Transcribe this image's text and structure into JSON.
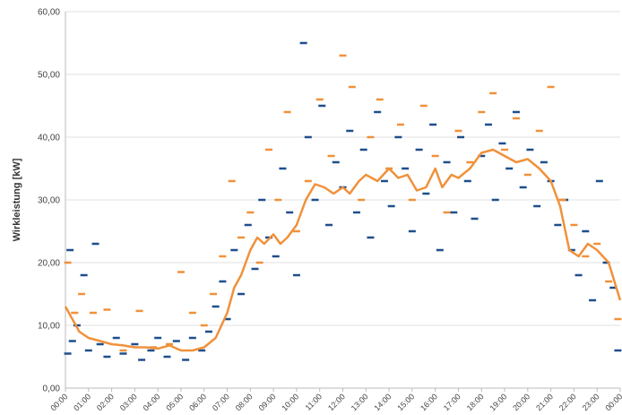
{
  "chart_data": {
    "type": "scatter",
    "y_label": "Wirkleistung [kW]",
    "xlim": [
      0,
      24
    ],
    "ylim": [
      0,
      60
    ],
    "yticks": [
      {
        "value": 0,
        "label": "0,00"
      },
      {
        "value": 10,
        "label": "10,00"
      },
      {
        "value": 20,
        "label": "20,00"
      },
      {
        "value": 30,
        "label": "30,00"
      },
      {
        "value": 40,
        "label": "40,00"
      },
      {
        "value": 50,
        "label": "50,00"
      },
      {
        "value": 60,
        "label": "60,00"
      }
    ],
    "xticks": [
      {
        "value": 0,
        "label": "00:00"
      },
      {
        "value": 1,
        "label": "01:00"
      },
      {
        "value": 2,
        "label": "02:00"
      },
      {
        "value": 3,
        "label": "03:00"
      },
      {
        "value": 4,
        "label": "04:00"
      },
      {
        "value": 5,
        "label": "05:00"
      },
      {
        "value": 6,
        "label": "06:00"
      },
      {
        "value": 7,
        "label": "07:00"
      },
      {
        "value": 8,
        "label": "08:00"
      },
      {
        "value": 9,
        "label": "09:00"
      },
      {
        "value": 10,
        "label": "10:00"
      },
      {
        "value": 11,
        "label": "11:00"
      },
      {
        "value": 12,
        "label": "12:00"
      },
      {
        "value": 13,
        "label": "13:00"
      },
      {
        "value": 14,
        "label": "14:00"
      },
      {
        "value": 15,
        "label": "15:00"
      },
      {
        "value": 16,
        "label": "16:00"
      },
      {
        "value": 17,
        "label": "17:00"
      },
      {
        "value": 18,
        "label": "18:00"
      },
      {
        "value": 19,
        "label": "19:00"
      },
      {
        "value": 20,
        "label": "20:00"
      },
      {
        "value": 21,
        "label": "21:00"
      },
      {
        "value": 22,
        "label": "22:00"
      },
      {
        "value": 23,
        "label": "23:00"
      },
      {
        "value": 24,
        "label": "00:00"
      }
    ],
    "grid": true,
    "series": [
      {
        "color": "#1f4e8c",
        "marker": "dash",
        "x": [
          0.1,
          0.2,
          0.3,
          0.5,
          0.8,
          1.0,
          1.3,
          1.5,
          1.8,
          2.2,
          2.5,
          3.0,
          3.3,
          3.7,
          4.0,
          4.4,
          4.8,
          5.2,
          5.5,
          5.9,
          6.2,
          6.5,
          6.8,
          7.0,
          7.3,
          7.6,
          7.9,
          8.2,
          8.5,
          8.8,
          9.1,
          9.4,
          9.7,
          10.0,
          10.3,
          10.5,
          10.8,
          11.1,
          11.4,
          11.7,
          12.0,
          12.3,
          12.6,
          12.9,
          13.2,
          13.5,
          13.8,
          14.1,
          14.4,
          14.7,
          15.0,
          15.3,
          15.6,
          15.9,
          16.2,
          16.5,
          16.8,
          17.1,
          17.4,
          17.7,
          18.0,
          18.3,
          18.6,
          18.9,
          19.2,
          19.5,
          19.8,
          20.1,
          20.4,
          20.7,
          21.0,
          21.3,
          21.6,
          21.9,
          22.2,
          22.5,
          22.8,
          23.1,
          23.4,
          23.7,
          23.9
        ],
        "values": [
          5.5,
          22,
          7.5,
          10,
          18,
          6,
          23,
          7,
          5,
          8,
          5.5,
          7,
          4.5,
          6,
          8,
          5,
          7.5,
          4.5,
          8,
          6,
          9,
          13,
          17,
          11,
          22,
          15,
          26,
          19,
          30,
          24,
          21,
          35,
          28,
          18,
          55,
          40,
          30,
          45,
          26,
          36,
          32,
          41,
          28,
          38,
          24,
          44,
          33,
          29,
          40,
          35,
          25,
          38,
          31,
          42,
          22,
          36,
          28,
          40,
          33,
          27,
          37,
          42,
          30,
          39,
          35,
          44,
          32,
          38,
          29,
          36,
          33,
          26,
          30,
          22,
          18,
          25,
          14,
          33,
          20,
          16,
          6
        ]
      },
      {
        "color": "#f0913a",
        "marker": "dash",
        "x": [
          0.1,
          0.4,
          0.7,
          1.2,
          1.8,
          2.5,
          3.2,
          3.8,
          4.5,
          5.0,
          5.5,
          6.0,
          6.4,
          6.8,
          7.2,
          7.6,
          8.0,
          8.4,
          8.8,
          9.2,
          9.6,
          10.0,
          10.5,
          11.0,
          11.5,
          12.0,
          12.4,
          12.8,
          13.2,
          13.6,
          14.0,
          14.5,
          15.0,
          15.5,
          16.0,
          16.5,
          17.0,
          17.5,
          18.0,
          18.5,
          19.0,
          19.5,
          20.0,
          20.5,
          21.0,
          21.5,
          22.0,
          22.5,
          23.0,
          23.5,
          23.9
        ],
        "values": [
          20,
          12,
          15,
          12,
          12.5,
          6,
          12.3,
          6.5,
          7,
          18.5,
          12,
          10,
          15,
          21,
          33,
          24,
          28,
          20,
          38,
          30,
          44,
          25,
          33,
          46,
          37,
          53,
          48,
          30,
          40,
          46,
          35,
          42,
          30,
          45,
          37,
          28,
          41,
          36,
          44,
          47,
          38,
          43,
          34,
          41,
          48,
          30,
          26,
          21,
          23,
          17,
          11
        ]
      },
      {
        "color": "#f0913a",
        "marker": "line",
        "x": [
          0,
          0.3,
          0.6,
          1.0,
          1.5,
          2,
          2.5,
          3,
          3.5,
          4,
          4.5,
          5,
          5.5,
          6,
          6.5,
          7,
          7.3,
          7.6,
          8,
          8.3,
          8.6,
          9,
          9.3,
          9.6,
          10,
          10.4,
          10.8,
          11.2,
          11.6,
          12,
          12.3,
          12.7,
          13,
          13.5,
          14,
          14.4,
          14.8,
          15.2,
          15.6,
          16,
          16.3,
          16.7,
          17,
          17.5,
          18,
          18.5,
          19,
          19.5,
          20,
          20.5,
          21,
          21.4,
          21.8,
          22.2,
          22.6,
          23,
          23.5,
          24
        ],
        "values": [
          13,
          11,
          9,
          8,
          7.5,
          7,
          6.8,
          6.5,
          6.5,
          6.3,
          6.8,
          6,
          6,
          6.5,
          8,
          12,
          16,
          18,
          22,
          24,
          23,
          24.5,
          23,
          24,
          26,
          30,
          32.5,
          32,
          31,
          32,
          31,
          33,
          34,
          33,
          35,
          33.5,
          34,
          31.5,
          32,
          35,
          32,
          34,
          33.5,
          35,
          37.5,
          38,
          37,
          36,
          36.5,
          35,
          33,
          29,
          22,
          21,
          23,
          22,
          20,
          14
        ]
      }
    ]
  }
}
